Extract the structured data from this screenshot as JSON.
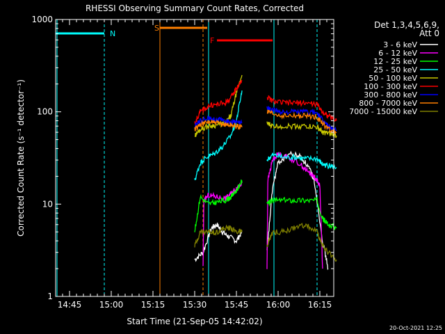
{
  "chart_data": {
    "type": "line",
    "title": "RHESSI Observing Summary Count Rates, Corrected",
    "xlabel": "Start Time (21-Sep-05 14:42:02)",
    "ylabel": "Corrected Count Rate (s⁻¹ detector⁻¹)",
    "yscale": "log",
    "ylim": [
      1,
      1000
    ],
    "xlim_minutes_from_14_40": [
      0,
      100
    ],
    "x_tick_labels": [
      "14:45",
      "15:00",
      "15:15",
      "15:30",
      "15:45",
      "16:00",
      "16:15"
    ],
    "y_tick_labels": [
      "1",
      "10",
      "100",
      "1000"
    ],
    "legend_header": [
      "Det 1,3,4,5,6,9,",
      "Att 0"
    ],
    "timestamp": "20-Oct-2021 12:25",
    "flags": [
      {
        "label": "N",
        "color": "#00ffff"
      },
      {
        "label": "S",
        "color": "#ff8000"
      },
      {
        "label": "F",
        "color": "#ff0000"
      }
    ],
    "series": [
      {
        "name": "3 - 6 keV",
        "color": "#ffffff",
        "seg1": [
          [
            50,
            2.5
          ],
          [
            53,
            3
          ],
          [
            56,
            5.5
          ],
          [
            58,
            6
          ],
          [
            60,
            5
          ],
          [
            62,
            4.5
          ],
          [
            65,
            4
          ],
          [
            67,
            5
          ]
        ],
        "seg2": [
          [
            76,
            3
          ],
          [
            78,
            15
          ],
          [
            80,
            28
          ],
          [
            84,
            35
          ],
          [
            88,
            33
          ],
          [
            91,
            25
          ],
          [
            93,
            18
          ],
          [
            96,
            4
          ],
          [
            98,
            2
          ]
        ]
      },
      {
        "name": "6 - 12 keV",
        "color": "#ff00ff",
        "seg1": [
          [
            53,
            2
          ],
          [
            53.3,
            11
          ],
          [
            55,
            12.5
          ],
          [
            58,
            12
          ],
          [
            61,
            11.5
          ],
          [
            63,
            13
          ],
          [
            65,
            15
          ],
          [
            67,
            17
          ]
        ],
        "seg2": [
          [
            76,
            2
          ],
          [
            76.3,
            18
          ],
          [
            78,
            30
          ],
          [
            80,
            35
          ],
          [
            84,
            32
          ],
          [
            88,
            27
          ],
          [
            91,
            22
          ],
          [
            93,
            20
          ],
          [
            95,
            16
          ],
          [
            96,
            2
          ]
        ]
      },
      {
        "name": "12 - 25 keV",
        "color": "#00ff00",
        "seg1": [
          [
            50,
            5
          ],
          [
            52,
            12
          ],
          [
            55,
            10
          ],
          [
            58,
            10.5
          ],
          [
            61,
            11
          ],
          [
            63,
            12
          ],
          [
            65,
            14
          ],
          [
            67,
            18
          ]
        ],
        "seg2": [
          [
            76,
            10
          ],
          [
            78,
            11
          ],
          [
            82,
            11
          ],
          [
            86,
            11
          ],
          [
            90,
            11
          ],
          [
            94,
            11
          ],
          [
            96,
            7
          ],
          [
            98,
            6
          ],
          [
            101,
            5.5
          ]
        ]
      },
      {
        "name": "25 - 50 keV",
        "color": "#00ffff",
        "seg1": [
          [
            50,
            18
          ],
          [
            52,
            28
          ],
          [
            54,
            32
          ],
          [
            57,
            35
          ],
          [
            60,
            42
          ],
          [
            63,
            55
          ],
          [
            65,
            80
          ],
          [
            67,
            170
          ]
        ],
        "seg2": [
          [
            76,
            30
          ],
          [
            78,
            34
          ],
          [
            82,
            32
          ],
          [
            86,
            32
          ],
          [
            90,
            31
          ],
          [
            94,
            31
          ],
          [
            96,
            27
          ],
          [
            98,
            26
          ],
          [
            101,
            25
          ]
        ]
      },
      {
        "name": "50 - 100 keV",
        "color": "#c8c800",
        "seg1": [
          [
            50,
            55
          ],
          [
            52,
            65
          ],
          [
            55,
            70
          ],
          [
            58,
            72
          ],
          [
            61,
            75
          ],
          [
            63,
            90
          ],
          [
            65,
            160
          ],
          [
            67,
            250
          ]
        ],
        "seg2": [
          [
            76,
            75
          ],
          [
            78,
            70
          ],
          [
            82,
            70
          ],
          [
            86,
            70
          ],
          [
            90,
            70
          ],
          [
            94,
            68
          ],
          [
            96,
            60
          ],
          [
            98,
            58
          ],
          [
            101,
            55
          ]
        ]
      },
      {
        "name": "100 - 300 keV",
        "color": "#ff0000",
        "seg1": [
          [
            50,
            75
          ],
          [
            52,
            100
          ],
          [
            55,
            115
          ],
          [
            58,
            120
          ],
          [
            61,
            125
          ],
          [
            63,
            140
          ],
          [
            65,
            180
          ],
          [
            67,
            220
          ]
        ],
        "seg2": [
          [
            76,
            145
          ],
          [
            78,
            130
          ],
          [
            82,
            125
          ],
          [
            86,
            125
          ],
          [
            90,
            125
          ],
          [
            94,
            120
          ],
          [
            96,
            100
          ],
          [
            98,
            90
          ],
          [
            101,
            80
          ]
        ]
      },
      {
        "name": "300 - 800 keV",
        "color": "#0000ff",
        "seg1": [
          [
            50,
            70
          ],
          [
            52,
            80
          ],
          [
            55,
            85
          ],
          [
            58,
            82
          ],
          [
            61,
            80
          ],
          [
            63,
            78
          ],
          [
            65,
            77
          ],
          [
            67,
            75
          ]
        ],
        "seg2": [
          [
            76,
            110
          ],
          [
            78,
            105
          ],
          [
            82,
            100
          ],
          [
            86,
            100
          ],
          [
            90,
            100
          ],
          [
            94,
            98
          ],
          [
            96,
            80
          ],
          [
            98,
            70
          ],
          [
            101,
            62
          ]
        ]
      },
      {
        "name": "800 - 7000 keV",
        "color": "#ff8000",
        "seg1": [
          [
            50,
            65
          ],
          [
            52,
            72
          ],
          [
            55,
            78
          ],
          [
            58,
            75
          ],
          [
            61,
            73
          ],
          [
            63,
            72
          ],
          [
            65,
            70
          ],
          [
            67,
            68
          ]
        ],
        "seg2": [
          [
            76,
            100
          ],
          [
            78,
            95
          ],
          [
            82,
            90
          ],
          [
            86,
            90
          ],
          [
            90,
            90
          ],
          [
            94,
            88
          ],
          [
            96,
            75
          ],
          [
            98,
            65
          ],
          [
            101,
            60
          ]
        ]
      },
      {
        "name": "7000 - 15000 keV",
        "color": "#808000",
        "seg1": [
          [
            50,
            3.5
          ],
          [
            52,
            5
          ],
          [
            55,
            5
          ],
          [
            58,
            5
          ],
          [
            61,
            5.5
          ],
          [
            63,
            5.5
          ],
          [
            65,
            5
          ],
          [
            67,
            5
          ]
        ],
        "seg2": [
          [
            76,
            3.5
          ],
          [
            78,
            5
          ],
          [
            82,
            5
          ],
          [
            86,
            5.5
          ],
          [
            90,
            6
          ],
          [
            94,
            5
          ],
          [
            96,
            3.5
          ],
          [
            98,
            3
          ],
          [
            101,
            2.5
          ]
        ]
      }
    ]
  }
}
